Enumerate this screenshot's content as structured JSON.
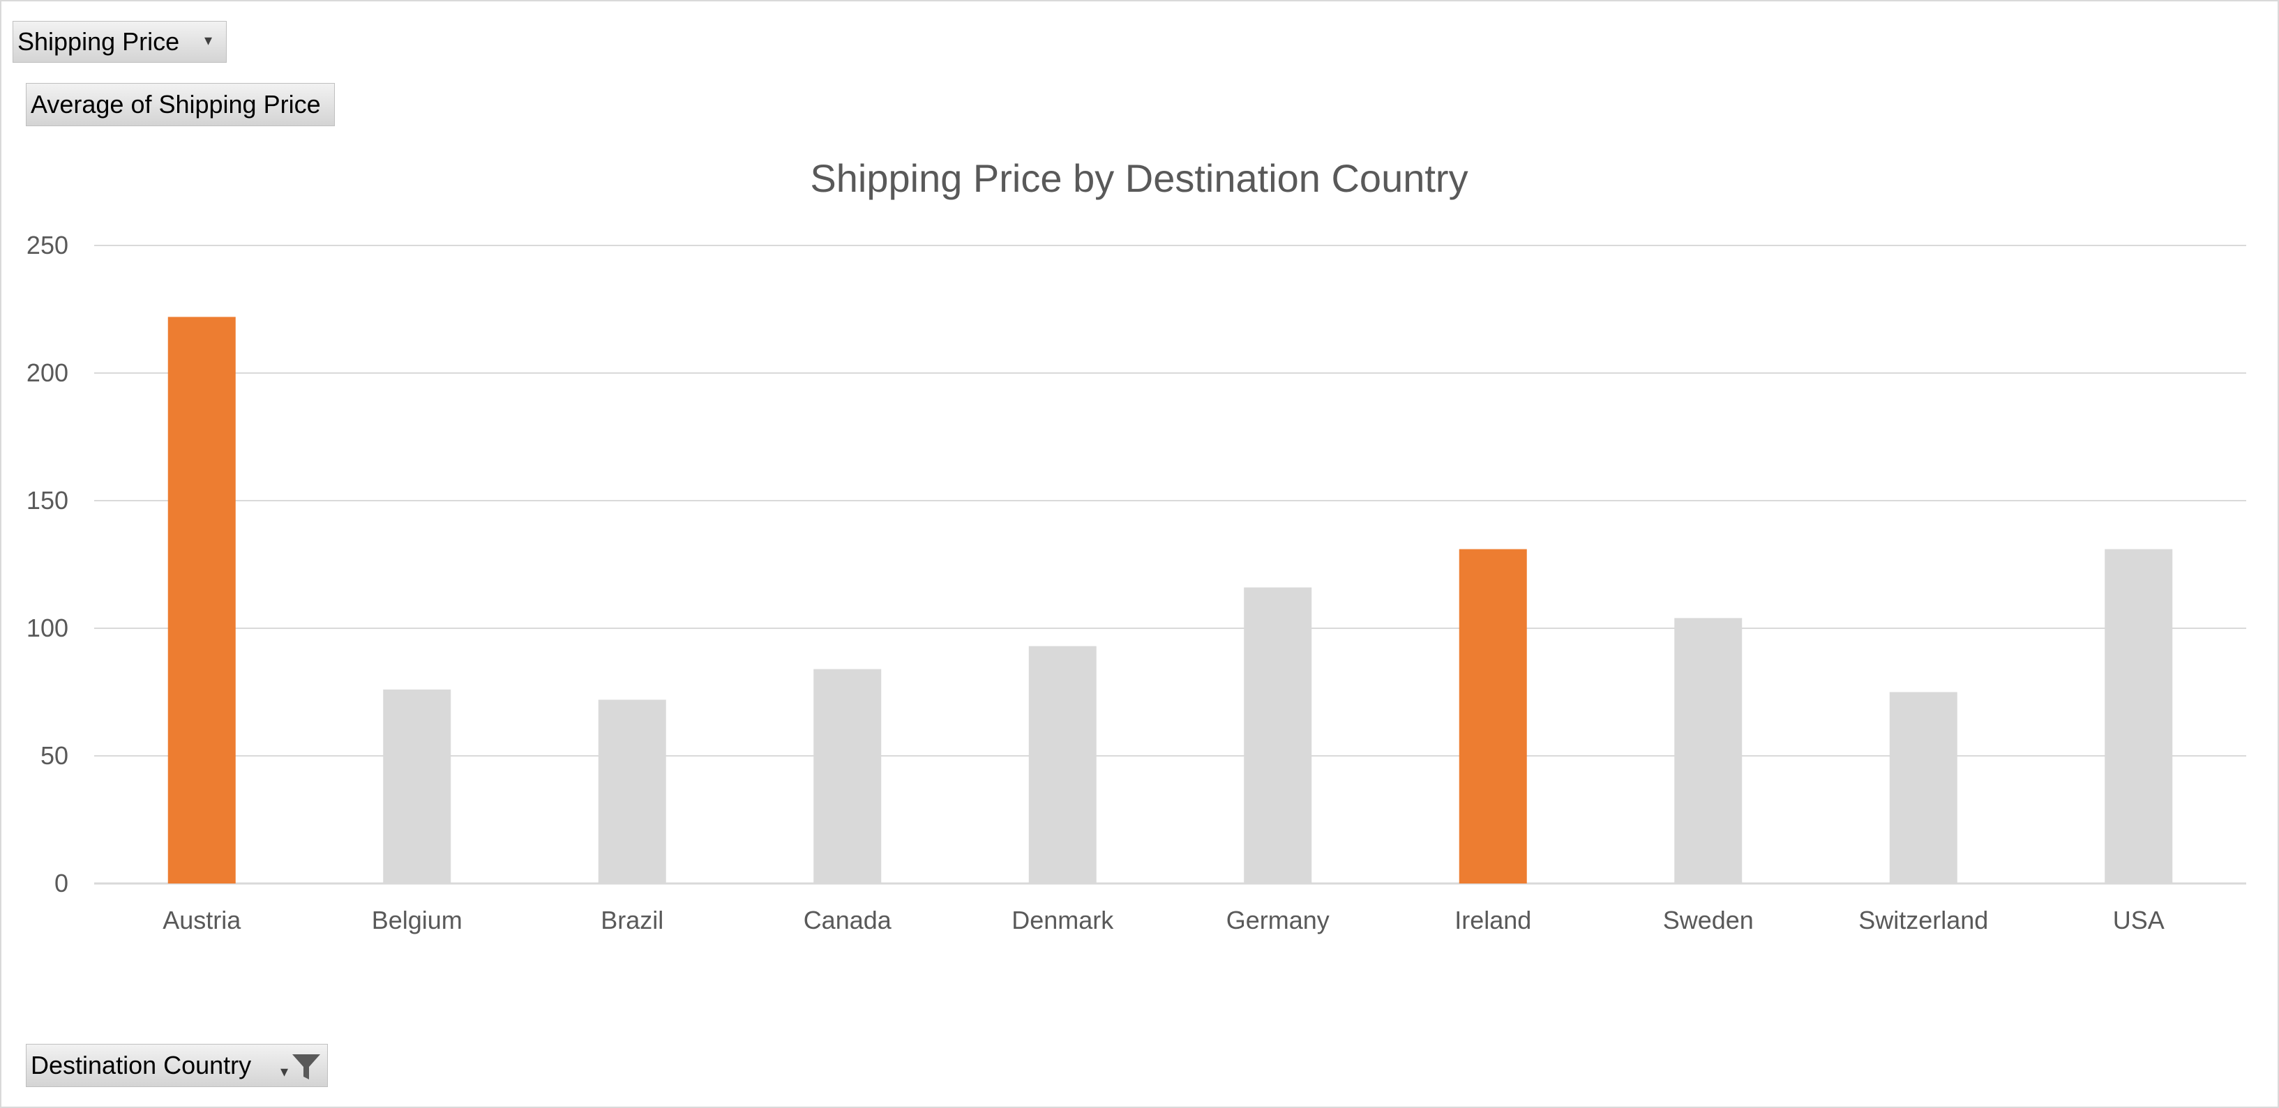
{
  "pivot_buttons": {
    "value_field": "Shipping Price",
    "value_label": "Average of Shipping Price",
    "axis_field": "Destination Country"
  },
  "colors": {
    "highlight": "#ED7D31",
    "default_bar": "#D9D9D9",
    "gridline": "#D9D9D9",
    "text": "#595959"
  },
  "icons": {
    "dropdown": "chevron-down-icon",
    "filter": "filter-icon"
  },
  "chart_data": {
    "type": "bar",
    "title": "Shipping Price by Destination Country",
    "xlabel": "",
    "ylabel": "",
    "categories": [
      "Austria",
      "Belgium",
      "Brazil",
      "Canada",
      "Denmark",
      "Germany",
      "Ireland",
      "Sweden",
      "Switzerland",
      "USA"
    ],
    "values": [
      222,
      76,
      72,
      84,
      93,
      116,
      131,
      104,
      75,
      131
    ],
    "highlighted": [
      "Austria",
      "Ireland"
    ],
    "ylim": [
      0,
      250
    ],
    "yticks": [
      0,
      50,
      100,
      150,
      200,
      250
    ],
    "grid": true,
    "legend": "none"
  }
}
